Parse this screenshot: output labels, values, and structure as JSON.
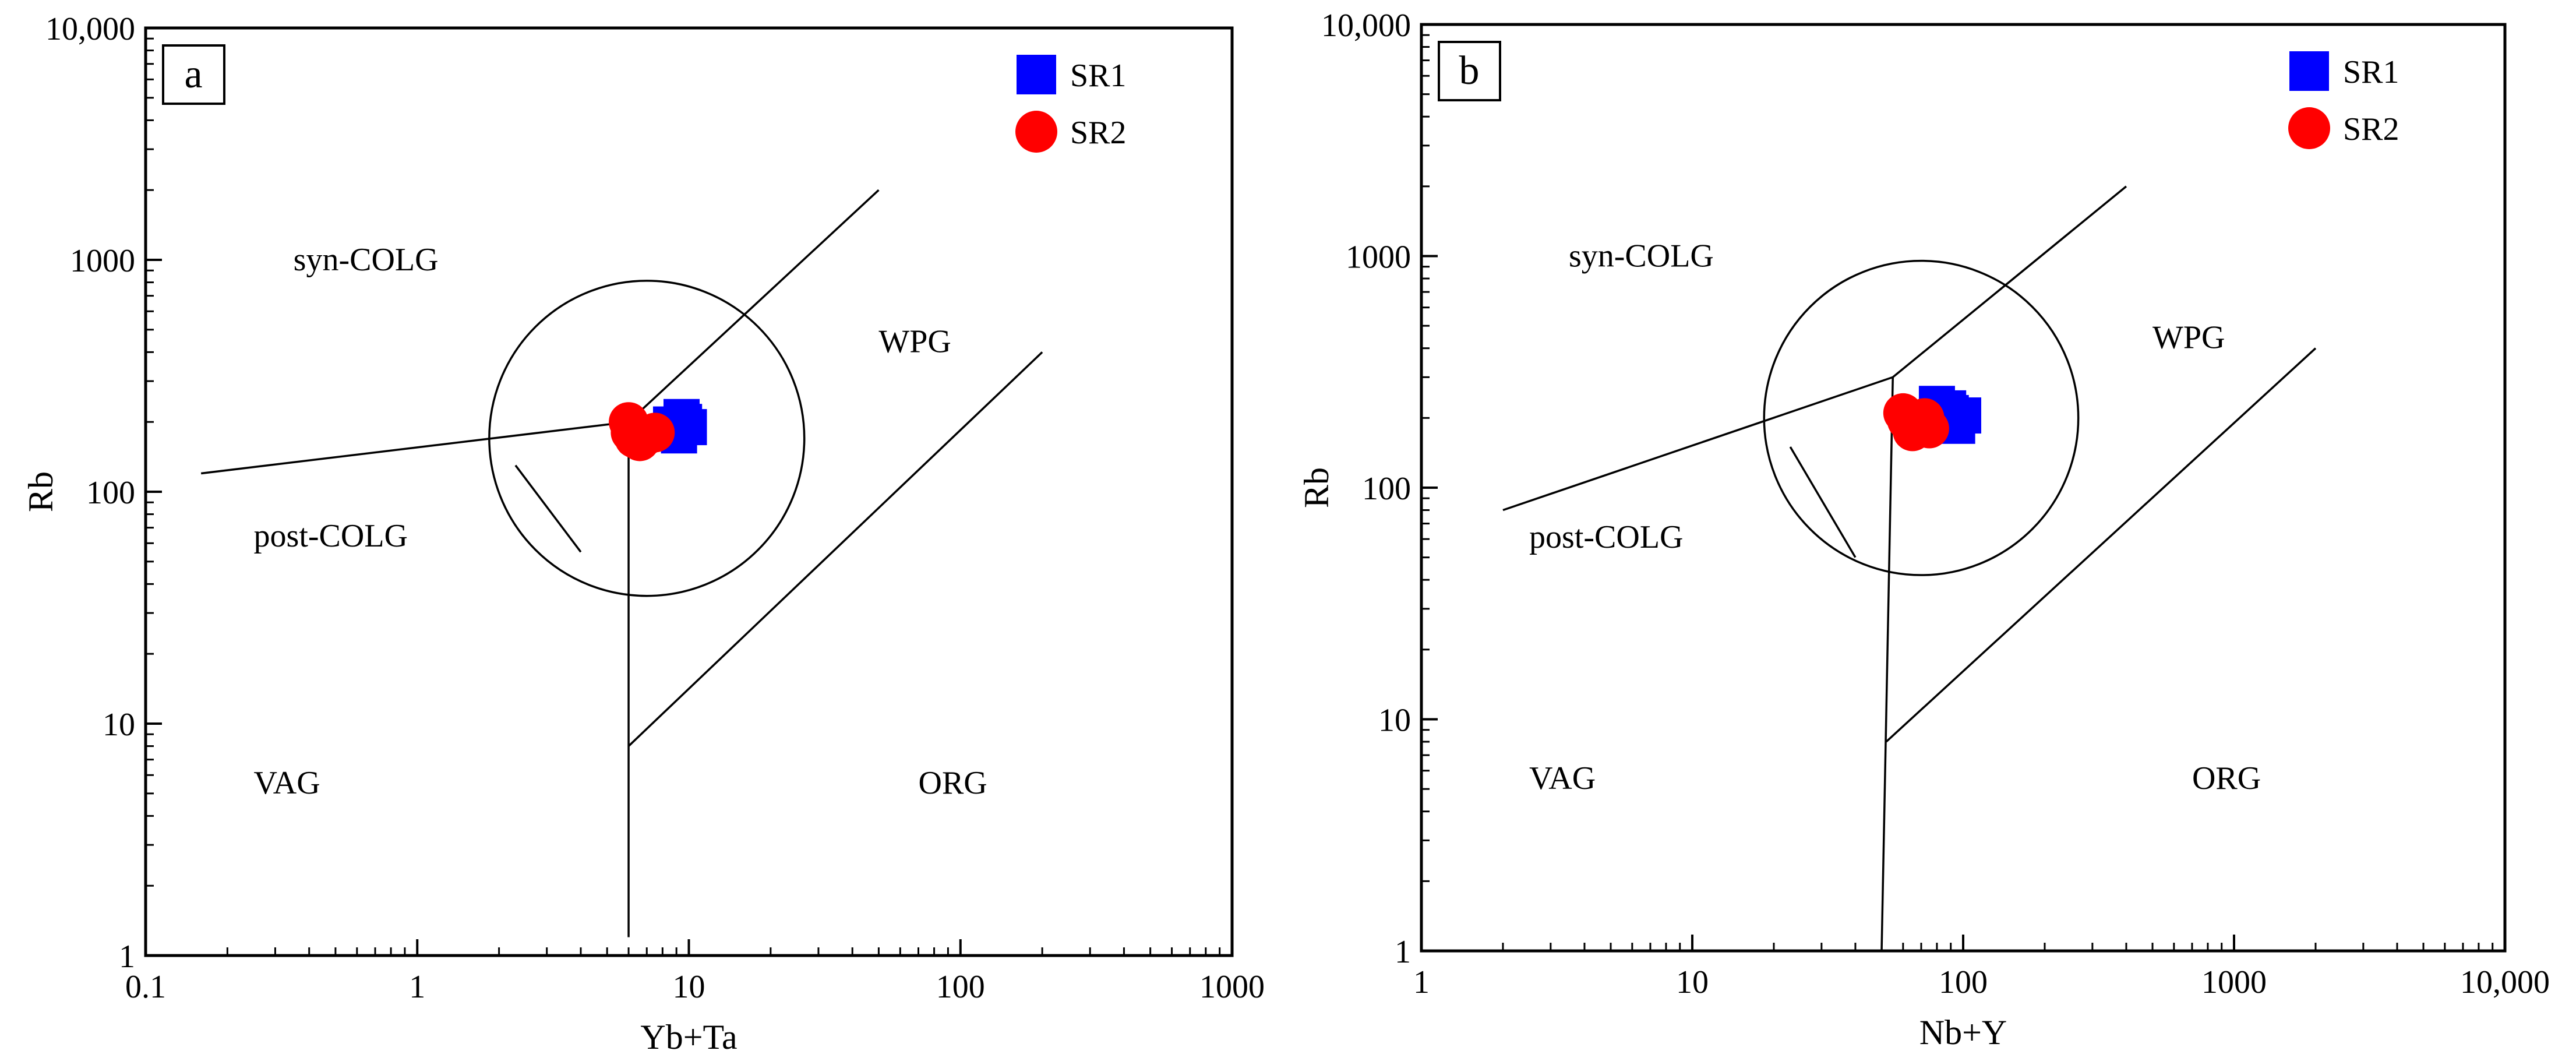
{
  "figure": {
    "legend": [
      {
        "name": "SR1",
        "marker": "square",
        "color": "#0000ff"
      },
      {
        "name": "SR2",
        "marker": "circle",
        "color": "#ff0000"
      }
    ]
  },
  "chart_data": [
    {
      "type": "scatter",
      "panel": "a",
      "title": "a",
      "xlabel": "Yb+Ta",
      "ylabel": "Rb",
      "xscale": "log",
      "yscale": "log",
      "xlim": [
        0.1,
        1000
      ],
      "ylim": [
        1,
        10000
      ],
      "xticks": [
        0.1,
        1,
        10,
        100,
        1000
      ],
      "xtick_labels": [
        "0.1",
        "1",
        "10",
        "100",
        "1000"
      ],
      "yticks": [
        1,
        10,
        100,
        1000,
        10000
      ],
      "ytick_labels": [
        "1",
        "10",
        "100",
        "1000",
        "10,000"
      ],
      "legend_position": "top-right",
      "grid": false,
      "boundaries": [
        [
          [
            0.16,
            120
          ],
          [
            6.0,
            200
          ],
          [
            50,
            2000
          ]
        ],
        [
          [
            6.0,
            200
          ],
          [
            6.0,
            1.2
          ]
        ],
        [
          [
            6.0,
            8
          ],
          [
            200,
            400
          ]
        ]
      ],
      "circle": {
        "center": [
          7,
          170
        ],
        "radius_decades": 0.58
      },
      "pointer": [
        [
          4.0,
          55
        ],
        [
          2.3,
          130
        ]
      ],
      "field_labels": [
        {
          "text": "syn-COLG",
          "x": 0.35,
          "y": 900
        },
        {
          "text": "WPG",
          "x": 50,
          "y": 400
        },
        {
          "text": "VAG",
          "x": 0.25,
          "y": 5
        },
        {
          "text": "ORG",
          "x": 70,
          "y": 5
        },
        {
          "text": "post-COLG",
          "x": 0.25,
          "y": 58
        }
      ],
      "series": [
        {
          "name": "SR1",
          "marker": "square",
          "color": "#0000ff",
          "points": [
            [
              8.8,
              185
            ],
            [
              9.6,
              200
            ],
            [
              9.2,
              175
            ],
            [
              10.0,
              190
            ],
            [
              8.6,
              195
            ],
            [
              9.4,
              210
            ]
          ]
        },
        {
          "name": "SR2",
          "marker": "circle",
          "color": "#ff0000",
          "points": [
            [
              6.0,
              200
            ],
            [
              6.3,
              170
            ],
            [
              7.0,
              175
            ],
            [
              6.6,
              165
            ],
            [
              7.5,
              180
            ],
            [
              6.1,
              180
            ]
          ]
        }
      ]
    },
    {
      "type": "scatter",
      "panel": "b",
      "title": "b",
      "xlabel": "Nb+Y",
      "ylabel": "Rb",
      "xscale": "log",
      "yscale": "log",
      "xlim": [
        1,
        10000
      ],
      "ylim": [
        1,
        10000
      ],
      "xticks": [
        1,
        10,
        100,
        1000,
        10000
      ],
      "xtick_labels": [
        "1",
        "10",
        "100",
        "1000",
        "10,000"
      ],
      "yticks": [
        1,
        10,
        100,
        1000,
        10000
      ],
      "ytick_labels": [
        "1",
        "10",
        "100",
        "1000",
        "10,000"
      ],
      "legend_position": "top-right",
      "grid": false,
      "boundaries": [
        [
          [
            2,
            80
          ],
          [
            55,
            300
          ],
          [
            400,
            2000
          ]
        ],
        [
          [
            55,
            300
          ],
          [
            50,
            1
          ]
        ],
        [
          [
            52,
            8
          ],
          [
            2000,
            400
          ]
        ]
      ],
      "circle": {
        "center": [
          70,
          200
        ],
        "radius_decades": 0.58
      },
      "pointer": [
        [
          40,
          50
        ],
        [
          23,
          150
        ]
      ],
      "field_labels": [
        {
          "text": "syn-COLG",
          "x": 3.5,
          "y": 900
        },
        {
          "text": "WPG",
          "x": 500,
          "y": 400
        },
        {
          "text": "VAG",
          "x": 2.5,
          "y": 5
        },
        {
          "text": "ORG",
          "x": 700,
          "y": 5
        },
        {
          "text": "post-COLG",
          "x": 2.5,
          "y": 55
        }
      ],
      "series": [
        {
          "name": "SR1",
          "marker": "square",
          "color": "#0000ff",
          "points": [
            [
              80,
              230
            ],
            [
              90,
              210
            ],
            [
              85,
              195
            ],
            [
              100,
              205
            ],
            [
              95,
              185
            ],
            [
              88,
              220
            ]
          ]
        },
        {
          "name": "SR2",
          "marker": "circle",
          "color": "#ff0000",
          "points": [
            [
              60,
              210
            ],
            [
              70,
              190
            ],
            [
              65,
              175
            ],
            [
              75,
              180
            ],
            [
              62,
              195
            ],
            [
              72,
              200
            ]
          ]
        }
      ]
    }
  ]
}
